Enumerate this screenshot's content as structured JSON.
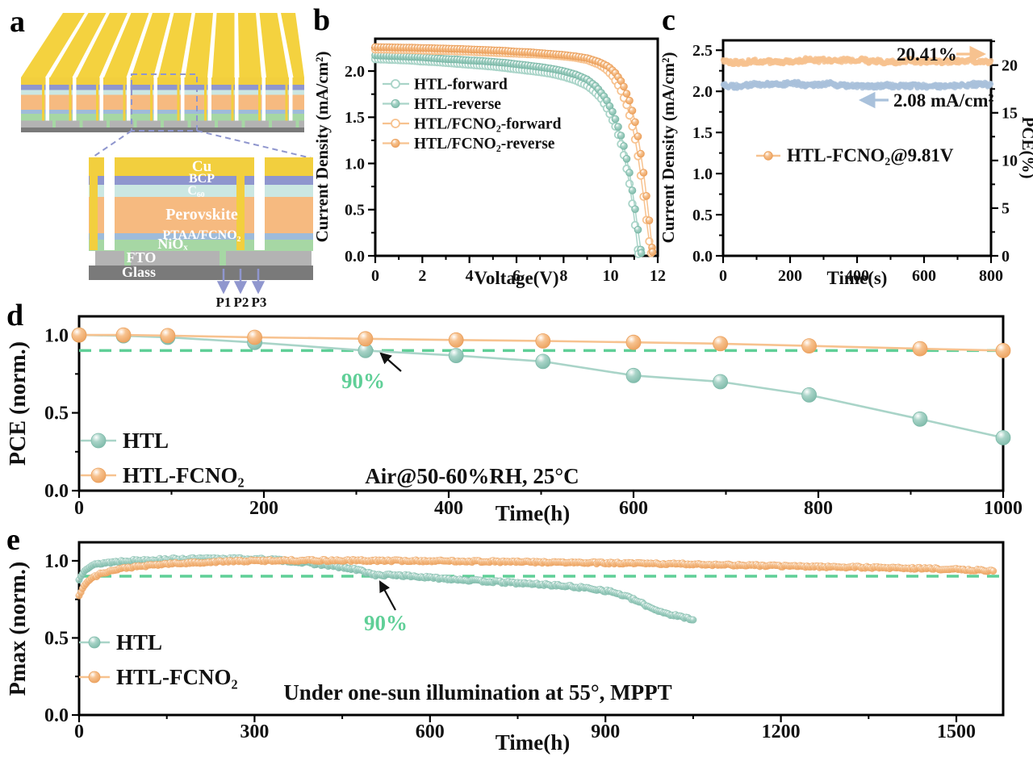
{
  "panel_labels": {
    "a": "a",
    "b": "b",
    "c": "c",
    "d": "d",
    "e": "e"
  },
  "colors": {
    "teal": "#a9d4c8",
    "teal_dark": "#7cb9a8",
    "teal_light": "#eef9f5",
    "orange": "#f7c28f",
    "orange_dark": "#eba05c",
    "orange_light": "#fdf0e0",
    "blue": "#a9c1db",
    "blue_dark": "#8fabce",
    "green": "#5fcf97",
    "periwinkle": "#8f96ce",
    "axis": "#000000",
    "text": "#111111"
  },
  "panel_a": {
    "label": "a",
    "module_top_color": "#f4d23f",
    "accent_color": "#8f96ce",
    "layers": [
      {
        "name": "cu",
        "label": "Cu",
        "color": "#f2cf3e"
      },
      {
        "name": "bcp",
        "label": "BCP",
        "color": "#8f96ce"
      },
      {
        "name": "c60",
        "label": "C₆₀",
        "color": "#cbe7e2"
      },
      {
        "name": "perovskite",
        "label": "Perovskite",
        "color": "#f6ba80"
      },
      {
        "name": "ptaa",
        "label": "PTAA/FCNO₂",
        "color": "#9ebbda"
      },
      {
        "name": "niox",
        "label": "NiOₓ",
        "color": "#a6d7a4"
      },
      {
        "name": "fto",
        "label": "FTO",
        "color": "#b3b3b3"
      },
      {
        "name": "glass",
        "label": "Glass",
        "color": "#7a7a7a"
      }
    ],
    "scribe_labels": [
      "P1",
      "P2",
      "P3"
    ]
  },
  "chart_data": [
    {
      "panel": "b",
      "type": "line",
      "xlabel": "Voltage(V)",
      "ylabel": "Current Density (mA/cm²)",
      "xlim": [
        0,
        12
      ],
      "ylim": [
        0,
        2.35
      ],
      "xticks": [
        [
          0,
          "0"
        ],
        [
          2,
          "2"
        ],
        [
          4,
          "4"
        ],
        [
          6,
          "6"
        ],
        [
          8,
          "8"
        ],
        [
          10,
          "10"
        ],
        [
          12,
          "12"
        ]
      ],
      "xminor_step": 1,
      "yticks": [
        [
          0,
          "0.0"
        ],
        [
          0.5,
          "0.5"
        ],
        [
          1,
          "1.0"
        ],
        [
          1.5,
          "1.5"
        ],
        [
          2,
          "2.0"
        ]
      ],
      "yminor_step": 0.25,
      "legend_position": "upper-left",
      "series": [
        {
          "name": "HTL-forward",
          "color": "teal",
          "marker": "open",
          "x": [
            0,
            0.5,
            1,
            1.5,
            2,
            2.5,
            3,
            3.5,
            4,
            4.5,
            5,
            5.5,
            6,
            6.5,
            7,
            7.5,
            8,
            8.5,
            9,
            9.3,
            9.6,
            9.9,
            10.2,
            10.4,
            10.6,
            10.8,
            11.0,
            11.1,
            11.18
          ],
          "y": [
            2.13,
            2.125,
            2.12,
            2.115,
            2.105,
            2.1,
            2.09,
            2.08,
            2.07,
            2.06,
            2.05,
            2.035,
            2.02,
            2.005,
            1.99,
            1.97,
            1.94,
            1.9,
            1.84,
            1.78,
            1.7,
            1.57,
            1.4,
            1.25,
            1.05,
            0.78,
            0.42,
            0.2,
            0.02
          ]
        },
        {
          "name": "HTL-reverse",
          "color": "teal",
          "marker": "filled",
          "x": [
            0,
            0.5,
            1,
            1.5,
            2,
            2.5,
            3,
            3.5,
            4,
            4.5,
            5,
            5.5,
            6,
            6.5,
            7,
            7.5,
            8,
            8.5,
            9,
            9.4,
            9.8,
            10.1,
            10.4,
            10.6,
            10.8,
            11.0,
            11.15,
            11.3
          ],
          "y": [
            2.17,
            2.165,
            2.16,
            2.155,
            2.15,
            2.14,
            2.13,
            2.125,
            2.115,
            2.11,
            2.1,
            2.09,
            2.075,
            2.06,
            2.045,
            2.025,
            2.0,
            1.965,
            1.91,
            1.83,
            1.7,
            1.55,
            1.34,
            1.15,
            0.9,
            0.58,
            0.3,
            0.03
          ]
        },
        {
          "name": "HTL/FCNO₂-forward",
          "color": "orange",
          "marker": "open",
          "x": [
            0,
            0.5,
            1,
            1.5,
            2,
            2.5,
            3,
            3.5,
            4,
            4.5,
            5,
            5.5,
            6,
            6.5,
            7,
            7.5,
            8,
            8.5,
            9,
            9.5,
            9.8,
            10.1,
            10.4,
            10.7,
            11.0,
            11.2,
            11.4,
            11.6,
            11.72
          ],
          "y": [
            2.235,
            2.235,
            2.23,
            2.23,
            2.225,
            2.22,
            2.22,
            2.215,
            2.21,
            2.205,
            2.2,
            2.195,
            2.19,
            2.185,
            2.18,
            2.17,
            2.16,
            2.145,
            2.12,
            2.07,
            2.02,
            1.94,
            1.81,
            1.62,
            1.32,
            1.02,
            0.64,
            0.22,
            0.03
          ]
        },
        {
          "name": "HTL/FCNO₂-reverse",
          "color": "orange",
          "marker": "filled",
          "x": [
            0,
            0.5,
            1,
            1.5,
            2,
            2.5,
            3,
            3.5,
            4,
            4.5,
            5,
            5.5,
            6,
            6.5,
            7,
            7.5,
            8,
            8.5,
            9,
            9.5,
            9.9,
            10.2,
            10.5,
            10.8,
            11.0,
            11.2,
            11.4,
            11.6,
            11.78
          ],
          "y": [
            2.26,
            2.258,
            2.255,
            2.253,
            2.25,
            2.247,
            2.243,
            2.24,
            2.235,
            2.23,
            2.225,
            2.22,
            2.21,
            2.205,
            2.195,
            2.185,
            2.175,
            2.16,
            2.14,
            2.1,
            2.05,
            1.98,
            1.87,
            1.68,
            1.5,
            1.24,
            0.9,
            0.48,
            0.04
          ]
        }
      ]
    },
    {
      "panel": "c",
      "type": "line",
      "xlabel": "Time(s)",
      "ylabel_left": "Current Density (mA/cm²)",
      "ylabel_right": "PCE(%)",
      "xlim": [
        0,
        800
      ],
      "ylim_left": [
        0,
        2.62
      ],
      "ylim_right": [
        0,
        22.6
      ],
      "xticks": [
        [
          0,
          "0"
        ],
        [
          200,
          "200"
        ],
        [
          400,
          "400"
        ],
        [
          600,
          "600"
        ],
        [
          800,
          "800"
        ]
      ],
      "xminor_step": 100,
      "yticks_left": [
        [
          0,
          "0.0"
        ],
        [
          0.5,
          "0.5"
        ],
        [
          1,
          "1.0"
        ],
        [
          1.5,
          "1.5"
        ],
        [
          2,
          "2.0"
        ],
        [
          2.5,
          "2.5"
        ]
      ],
      "yminor_left_step": 0.25,
      "yticks_right": [
        [
          0,
          "0"
        ],
        [
          5,
          "5"
        ],
        [
          10,
          "10"
        ],
        [
          15,
          "15"
        ],
        [
          20,
          "20"
        ]
      ],
      "yminor_right_step": 2.5,
      "series": [
        {
          "name": "PCE",
          "axis": "right",
          "color": "orange",
          "baseline": 20.41,
          "noise": 0.16
        },
        {
          "name": "Current density",
          "axis": "left",
          "color": "blue",
          "baseline": 2.08,
          "noise": 0.02
        }
      ],
      "annotations": [
        {
          "text": "20.41%",
          "arrow": "right",
          "color": "orange"
        },
        {
          "text": "2.08 mA/cm²",
          "arrow": "left",
          "color": "blue"
        }
      ],
      "legend": [
        {
          "label": "HTL-FCNO₂@9.81V",
          "color": "orange"
        }
      ]
    },
    {
      "panel": "d",
      "type": "line",
      "xlabel": "Time(h)",
      "ylabel": "PCE (norm.)",
      "xlim": [
        0,
        1000
      ],
      "ylim": [
        0,
        1.12
      ],
      "xticks": [
        [
          0,
          "0"
        ],
        [
          200,
          "200"
        ],
        [
          400,
          "400"
        ],
        [
          600,
          "600"
        ],
        [
          800,
          "800"
        ],
        [
          1000,
          "1000"
        ]
      ],
      "xminor_step": 100,
      "yticks": [
        [
          0,
          "0.0"
        ],
        [
          0.5,
          "0.5"
        ],
        [
          1,
          "1.0"
        ]
      ],
      "yminor_step": 0.25,
      "reference_line": {
        "y": 0.9,
        "label": "90%",
        "style": "dashed",
        "color": "green"
      },
      "annotation": "Air@50-60%RH, 25°C",
      "series": [
        {
          "name": "HTL",
          "color": "teal",
          "x": [
            0,
            48,
            96,
            190,
            310,
            408,
            502,
            600,
            694,
            790,
            910,
            1000
          ],
          "y": [
            1.0,
            0.995,
            0.985,
            0.952,
            0.9,
            0.868,
            0.83,
            0.74,
            0.7,
            0.615,
            0.46,
            0.34
          ]
        },
        {
          "name": "HTL-FCNO₂",
          "color": "orange",
          "x": [
            0,
            48,
            96,
            190,
            310,
            408,
            502,
            600,
            694,
            790,
            910,
            1000
          ],
          "y": [
            1.0,
            1.0,
            0.996,
            0.985,
            0.976,
            0.968,
            0.962,
            0.953,
            0.944,
            0.93,
            0.912,
            0.9
          ]
        }
      ]
    },
    {
      "panel": "e",
      "type": "scatter",
      "xlabel": "Time(h)",
      "ylabel": "Pmax (norm.)",
      "xlim": [
        0,
        1580
      ],
      "ylim": [
        0,
        1.12
      ],
      "xticks": [
        [
          0,
          "0"
        ],
        [
          300,
          "300"
        ],
        [
          600,
          "600"
        ],
        [
          900,
          "900"
        ],
        [
          1200,
          "1200"
        ],
        [
          1500,
          "1500"
        ]
      ],
      "xminor_step": 150,
      "yticks": [
        [
          0,
          "0.0"
        ],
        [
          0.5,
          "0.5"
        ],
        [
          1,
          "1.0"
        ]
      ],
      "yminor_step": 0.25,
      "reference_line": {
        "y": 0.9,
        "label": "90%",
        "style": "dashed",
        "color": "green"
      },
      "annotation": "Under one-sun illumination at 55°, MPPT",
      "series": [
        {
          "name": "HTL",
          "color": "teal",
          "step": 3,
          "jitter": 0.007,
          "anchors_x": [
            0,
            4,
            10,
            20,
            40,
            80,
            150,
            250,
            330,
            370,
            400,
            440,
            480,
            510,
            540,
            570,
            600,
            640,
            680,
            720,
            760,
            800,
            840,
            880,
            910,
            935,
            955,
            975,
            995,
            1015,
            1035,
            1050
          ],
          "anchors_y": [
            0.875,
            0.91,
            0.945,
            0.968,
            0.985,
            1.0,
            1.01,
            1.015,
            1.008,
            0.995,
            0.982,
            0.962,
            0.938,
            0.905,
            0.908,
            0.9,
            0.89,
            0.882,
            0.87,
            0.862,
            0.853,
            0.845,
            0.833,
            0.818,
            0.8,
            0.77,
            0.737,
            0.7,
            0.67,
            0.648,
            0.632,
            0.622
          ]
        },
        {
          "name": "HTL-FCNO₂",
          "color": "orange",
          "step": 3,
          "jitter": 0.006,
          "anchors_x": [
            0,
            4,
            10,
            20,
            40,
            80,
            150,
            250,
            350,
            450,
            550,
            650,
            750,
            850,
            950,
            1050,
            1150,
            1250,
            1350,
            1450,
            1550,
            1565
          ],
          "anchors_y": [
            0.775,
            0.802,
            0.845,
            0.885,
            0.922,
            0.955,
            0.98,
            0.996,
            1.003,
            1.002,
            1.0,
            0.998,
            0.993,
            0.988,
            0.983,
            0.978,
            0.97,
            0.963,
            0.957,
            0.95,
            0.937,
            0.933
          ]
        }
      ]
    }
  ]
}
